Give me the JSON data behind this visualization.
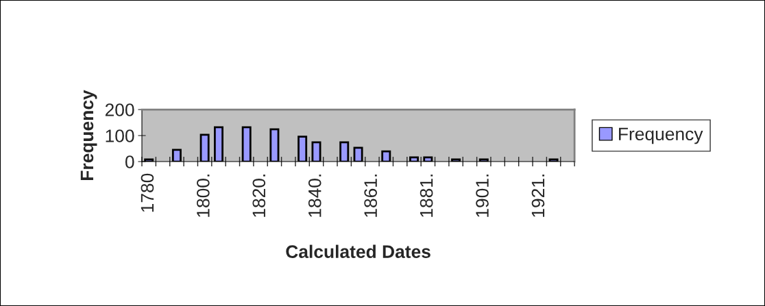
{
  "chart_data": {
    "type": "bar",
    "xlabel": "Calculated Dates",
    "ylabel": "Frequency",
    "categories": [
      "1780",
      null,
      null,
      null,
      "1800.",
      null,
      null,
      null,
      "1820.",
      null,
      null,
      null,
      "1840.",
      null,
      null,
      null,
      "1861.",
      null,
      null,
      null,
      "1881.",
      null,
      null,
      null,
      "1901.",
      null,
      null,
      null,
      "1921.",
      null,
      null
    ],
    "series": [
      {
        "name": "Frequency",
        "color": "#9999ff",
        "values": [
          8,
          0,
          45,
          0,
          103,
          132,
          0,
          132,
          0,
          124,
          0,
          96,
          74,
          0,
          74,
          53,
          0,
          39,
          0,
          16,
          16,
          0,
          8,
          0,
          8,
          0,
          0,
          0,
          0,
          8,
          0
        ]
      }
    ],
    "ylim": [
      0,
      200
    ],
    "yticks": [
      0,
      100,
      200
    ],
    "grid": false,
    "legend": "right"
  }
}
